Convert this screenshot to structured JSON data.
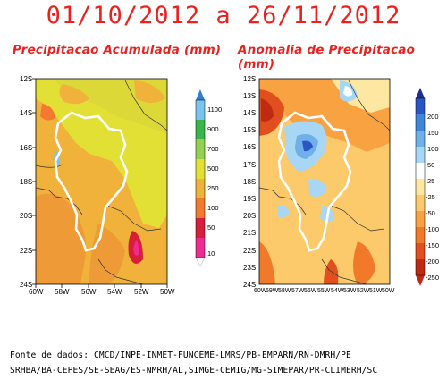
{
  "title": "01/10/2012 a 26/11/2012",
  "left_map": {
    "subtitle": "Precipitacao Acumulada (mm)",
    "lat_labels": [
      "12S",
      "14S",
      "16S",
      "18S",
      "20S",
      "22S",
      "24S"
    ],
    "lon_labels": [
      "60W",
      "58W",
      "56W",
      "54W",
      "52W",
      "50W"
    ],
    "colorbar": {
      "labels": [
        "1100",
        "900",
        "700",
        "500",
        "250",
        "100",
        "50",
        "10"
      ],
      "colors": [
        "#2f7fd0",
        "#7ac3ef",
        "#39b54a",
        "#93d150",
        "#e3e035",
        "#f0b23a",
        "#f17a2e",
        "#d81e38",
        "#ee2b8f"
      ]
    }
  },
  "right_map": {
    "subtitle": "Anomalia de Precipitacao (mm)",
    "lat_labels": [
      "12S",
      "13S",
      "14S",
      "15S",
      "16S",
      "17S",
      "18S",
      "19S",
      "20S",
      "21S",
      "22S",
      "23S",
      "24S"
    ],
    "lon_labels": [
      "60W",
      "59W",
      "58W",
      "57W",
      "56W",
      "55W",
      "54W",
      "53W",
      "52W",
      "51W",
      "50W"
    ],
    "colorbar": {
      "labels": [
        "200",
        "150",
        "100",
        "50",
        "25",
        "-25",
        "-50",
        "-100",
        "-150",
        "-200",
        "-250"
      ],
      "colors": [
        "#1d2f96",
        "#2b55c4",
        "#3d86d9",
        "#6fb0e9",
        "#a7d7f4",
        "#ffffff",
        "#fde7a1",
        "#fcc96b",
        "#f9a242",
        "#f07a2a",
        "#e24f1e",
        "#c12a12"
      ]
    }
  },
  "source": {
    "line1": "Fonte de dados: CMCD/INPE-INMET-FUNCEME-LMRS/PB-EMPARN/RN-DMRH/PE",
    "line2": "SRHBA/BA-CEPES/SE-SEAG/ES-NMRH/AL,SIMGE-CEMIG/MG-SIMEPAR/PR-CLIMERH/SC"
  }
}
